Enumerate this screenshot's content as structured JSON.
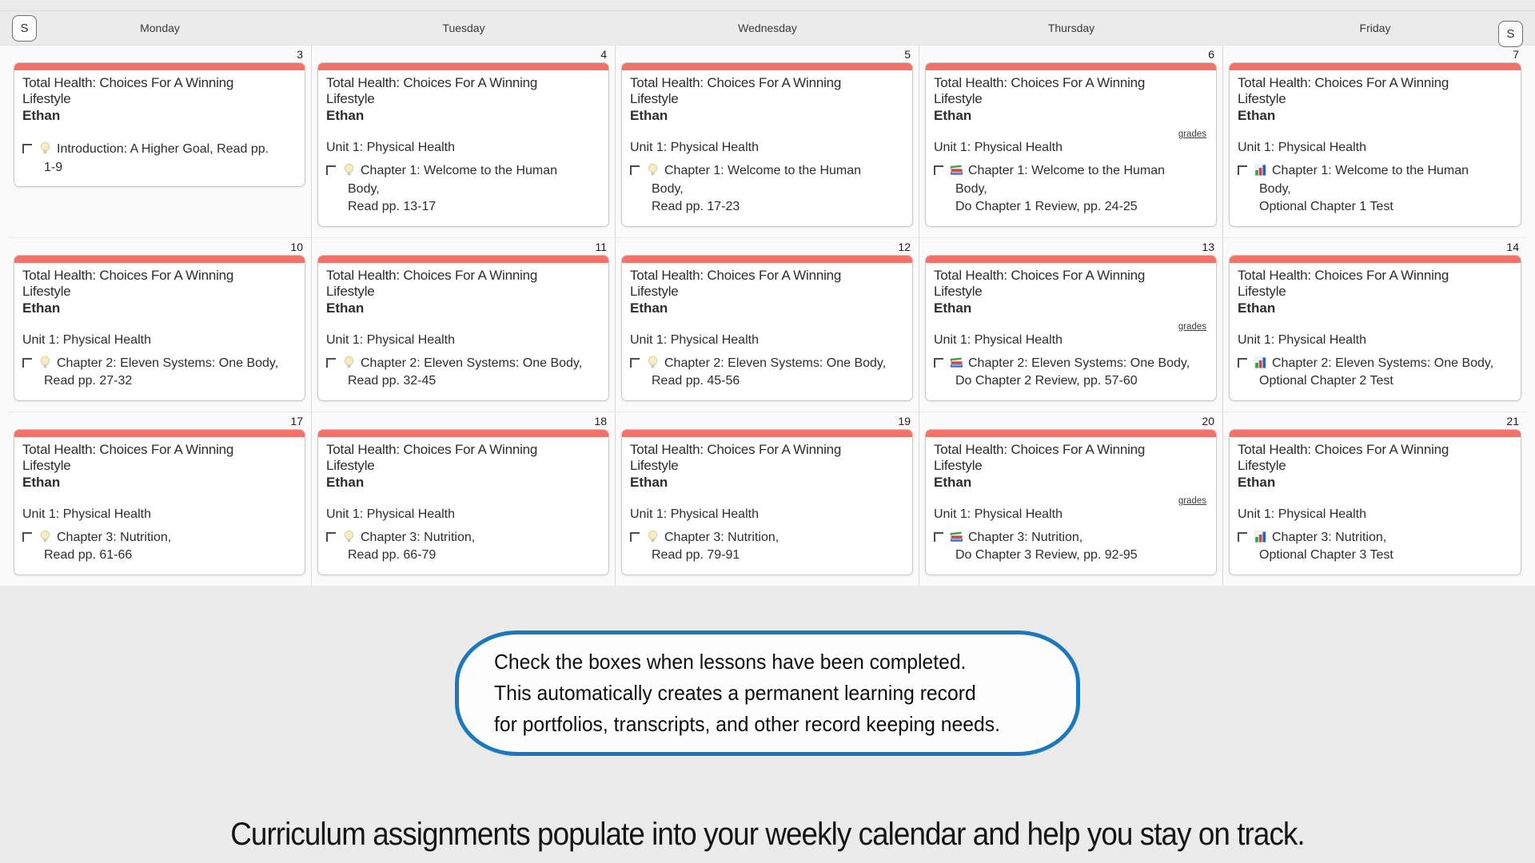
{
  "calendar": {
    "weekend_toggle_left": "S",
    "weekend_toggle_right": "S",
    "day_headers": [
      "Monday",
      "Tuesday",
      "Wednesday",
      "Thursday",
      "Friday"
    ],
    "course_title_lines": [
      "Total Health: Choices For A Winning",
      "Lifestyle"
    ],
    "student": "Ethan",
    "unit": "Unit 1: Physical Health",
    "grades_label": "grades",
    "weeks": [
      {
        "days": [
          {
            "date": "3",
            "show_unit": false,
            "grades": false,
            "icon": "lightbulb",
            "assignment_lines": [
              "Introduction: A Higher Goal, Read pp.",
              "1-9"
            ]
          },
          {
            "date": "4",
            "show_unit": true,
            "grades": false,
            "icon": "lightbulb",
            "assignment_lines": [
              "Chapter 1: Welcome to the Human",
              "Body,",
              "Read pp. 13-17"
            ]
          },
          {
            "date": "5",
            "show_unit": true,
            "grades": false,
            "icon": "lightbulb",
            "assignment_lines": [
              "Chapter 1: Welcome to the Human",
              "Body,",
              "Read pp. 17-23"
            ]
          },
          {
            "date": "6",
            "show_unit": true,
            "grades": true,
            "icon": "books",
            "assignment_lines": [
              "Chapter 1: Welcome to the Human",
              "Body,",
              "Do Chapter 1 Review, pp. 24-25"
            ]
          },
          {
            "date": "7",
            "show_unit": true,
            "grades": false,
            "icon": "chart",
            "assignment_lines": [
              "Chapter 1: Welcome to the Human",
              "Body,",
              "Optional Chapter 1 Test"
            ]
          }
        ]
      },
      {
        "days": [
          {
            "date": "10",
            "show_unit": true,
            "grades": false,
            "icon": "lightbulb",
            "assignment_lines": [
              "Chapter 2: Eleven Systems: One Body,",
              "Read pp. 27-32"
            ]
          },
          {
            "date": "11",
            "show_unit": true,
            "grades": false,
            "icon": "lightbulb",
            "assignment_lines": [
              "Chapter 2: Eleven Systems: One Body,",
              "Read pp. 32-45"
            ]
          },
          {
            "date": "12",
            "show_unit": true,
            "grades": false,
            "icon": "lightbulb",
            "assignment_lines": [
              "Chapter 2: Eleven Systems: One Body,",
              "Read pp. 45-56"
            ]
          },
          {
            "date": "13",
            "show_unit": true,
            "grades": true,
            "icon": "books",
            "assignment_lines": [
              "Chapter 2: Eleven Systems: One Body,",
              "Do Chapter 2 Review, pp. 57-60"
            ]
          },
          {
            "date": "14",
            "show_unit": true,
            "grades": false,
            "icon": "chart",
            "assignment_lines": [
              "Chapter 2: Eleven Systems: One Body,",
              "Optional Chapter 2 Test"
            ]
          }
        ]
      },
      {
        "days": [
          {
            "date": "17",
            "show_unit": true,
            "grades": false,
            "icon": "lightbulb",
            "assignment_lines": [
              "Chapter 3: Nutrition,",
              "Read pp. 61-66"
            ]
          },
          {
            "date": "18",
            "show_unit": true,
            "grades": false,
            "icon": "lightbulb",
            "assignment_lines": [
              "Chapter 3: Nutrition,",
              "Read pp. 66-79"
            ]
          },
          {
            "date": "19",
            "show_unit": true,
            "grades": false,
            "icon": "lightbulb",
            "assignment_lines": [
              "Chapter 3: Nutrition,",
              "Read pp. 79-91"
            ]
          },
          {
            "date": "20",
            "show_unit": true,
            "grades": true,
            "icon": "books",
            "assignment_lines": [
              "Chapter 3: Nutrition,",
              "Do Chapter 3 Review, pp. 92-95"
            ]
          },
          {
            "date": "21",
            "show_unit": true,
            "grades": false,
            "icon": "chart",
            "assignment_lines": [
              "Chapter 3: Nutrition,",
              "Optional Chapter 3 Test"
            ]
          }
        ]
      }
    ]
  },
  "callout": {
    "lines": [
      "Check the boxes when lessons have been completed.",
      "This automatically creates a permanent learning record",
      "for portfolios, transcripts, and other record keeping needs."
    ]
  },
  "caption": "Curriculum assignments populate into your weekly calendar and help you stay on track.",
  "colors": {
    "event_accent_red": "#F4716A",
    "callout_border_blue": "#1B78BE",
    "page_background": "#EBEBEB",
    "card_background": "#FFFFFF",
    "icon_green": "#3F9E4E",
    "icon_red": "#D0433B",
    "icon_blue": "#2B5FC0",
    "lightbulb_yellow": "#F6ECC3"
  }
}
